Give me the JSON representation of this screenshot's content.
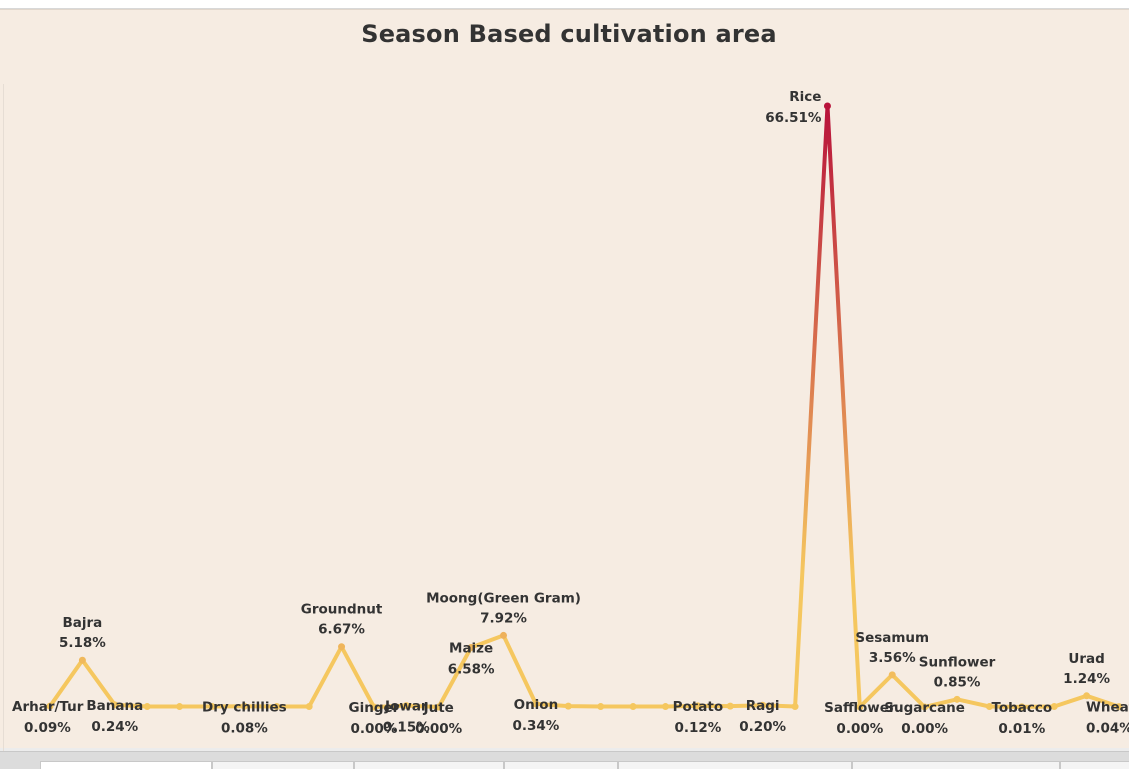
{
  "chart_data": {
    "type": "line",
    "title": "Season Based cultivation area",
    "xlabel": "",
    "ylabel": "",
    "ylim": [
      0,
      70
    ],
    "grid": false,
    "gradient_colors": {
      "low": "#f5c75f",
      "high": "#b8123a"
    },
    "points": [
      {
        "category": "Arhar/Tur",
        "value": 0.09,
        "label": "Arhar/Tur",
        "value_label": "0.09%"
      },
      {
        "category": "Bajra",
        "value": 5.18,
        "label": "Bajra",
        "value_label": "5.18%"
      },
      {
        "category": "Banana",
        "value": 0.24,
        "label": "Banana",
        "value_label": "0.24%"
      },
      {
        "category": "",
        "value": 0.05
      },
      {
        "category": "",
        "value": 0.05
      },
      {
        "category": "",
        "value": 0.05
      },
      {
        "category": "Dry chillies",
        "value": 0.08,
        "label": "Dry chillies",
        "value_label": "0.08%"
      },
      {
        "category": "",
        "value": 0.05
      },
      {
        "category": "",
        "value": 0.05
      },
      {
        "category": "Groundnut",
        "value": 6.67,
        "label": "Groundnut",
        "value_label": "6.67%"
      },
      {
        "category": "Ginger",
        "value": 0.0,
        "label": "Ginger",
        "value_label": "0.00%"
      },
      {
        "category": "Jowar",
        "value": 0.15,
        "label": "Jowar",
        "value_label": "0.15%"
      },
      {
        "category": "Jute",
        "value": 0.0,
        "label": "Jute",
        "value_label": "0.00%"
      },
      {
        "category": "Maize",
        "value": 6.58,
        "label": "Maize",
        "value_label": "6.58%"
      },
      {
        "category": "Moong(Green Gram)",
        "value": 7.92,
        "label": "Moong(Green Gram)",
        "value_label": "7.92%"
      },
      {
        "category": "Onion",
        "value": 0.34,
        "label": "Onion",
        "value_label": "0.34%"
      },
      {
        "category": "",
        "value": 0.1
      },
      {
        "category": "",
        "value": 0.05
      },
      {
        "category": "",
        "value": 0.05
      },
      {
        "category": "",
        "value": 0.05
      },
      {
        "category": "Potato",
        "value": 0.12,
        "label": "Potato",
        "value_label": "0.12%"
      },
      {
        "category": "",
        "value": 0.1
      },
      {
        "category": "Ragi",
        "value": 0.2,
        "label": "Ragi",
        "value_label": "0.20%"
      },
      {
        "category": "",
        "value": 0.05
      },
      {
        "category": "Rice",
        "value": 66.51,
        "label": "Rice",
        "value_label": "66.51%"
      },
      {
        "category": "Safflower",
        "value": 0.0,
        "label": "Safflower",
        "value_label": "0.00%"
      },
      {
        "category": "Sesamum",
        "value": 3.56,
        "label": "Sesamum",
        "value_label": "3.56%"
      },
      {
        "category": "Sugarcane",
        "value": 0.0,
        "label": "Sugarcane",
        "value_label": "0.00%"
      },
      {
        "category": "Sunflower",
        "value": 0.85,
        "label": "Sunflower",
        "value_label": "0.85%"
      },
      {
        "category": "",
        "value": 0.05
      },
      {
        "category": "Tobacco",
        "value": 0.01,
        "label": "Tobacco",
        "value_label": "0.01%"
      },
      {
        "category": "",
        "value": 0.05
      },
      {
        "category": "Urad",
        "value": 1.24,
        "label": "Urad",
        "value_label": "1.24%"
      },
      {
        "category": "Wheat",
        "value": 0.04,
        "label": "Wheat",
        "value_label": "0.04%"
      }
    ]
  }
}
